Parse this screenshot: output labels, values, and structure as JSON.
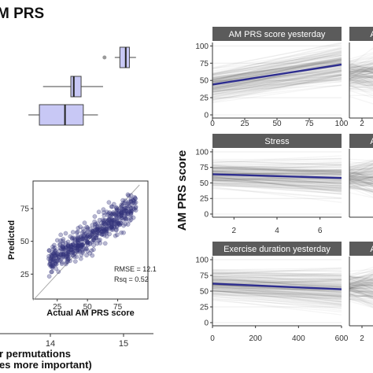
{
  "figure": {
    "title": "M PRS",
    "ylabel": "AM PRS score"
  },
  "chart_data": [
    {
      "type": "box",
      "boxes": [
        {
          "min": 14.88,
          "q1": 14.95,
          "median": 15.03,
          "q3": 15.08,
          "max": 15.17,
          "outliers": [
            14.74
          ]
        },
        {
          "min": 13.9,
          "q1": 14.28,
          "median": 14.32,
          "q3": 14.42,
          "max": 14.72,
          "outliers": []
        },
        {
          "min": 13.7,
          "q1": 13.85,
          "median": 14.2,
          "q3": 14.45,
          "max": 14.65,
          "outliers": []
        }
      ],
      "xticks": [
        14,
        15
      ],
      "xlabel_lines": [
        "r permutations",
        "es more important)"
      ],
      "fill_color": "#c8c8f5"
    },
    {
      "type": "scatter",
      "xlabel": "Actual AM PRS score",
      "ylabel": "Predicted",
      "xlim": [
        5,
        100
      ],
      "ylim": [
        6,
        96
      ],
      "xticks": [
        25,
        50,
        75
      ],
      "yticks": [
        25,
        50,
        75
      ],
      "identity_line": true,
      "annotations": [
        "RMSE = 12.1",
        "Rsq = 0.52"
      ],
      "point_color": "#33337a"
    },
    {
      "type": "line",
      "title": "AM PRS score yesterday",
      "xlim": [
        0,
        100
      ],
      "ylim": [
        0,
        105
      ],
      "xticks": [
        0,
        25,
        50,
        75,
        100
      ],
      "yticks": [
        0,
        25,
        50,
        75,
        100
      ],
      "mean_line": {
        "x": [
          0,
          100
        ],
        "y": [
          44,
          73
        ]
      },
      "line_color": "#2d2d8f"
    },
    {
      "type": "line",
      "title": "Stress",
      "xlim": [
        1,
        7
      ],
      "ylim": [
        0,
        105
      ],
      "xticks": [
        2,
        4,
        6
      ],
      "yticks": [
        0,
        25,
        50,
        75,
        100
      ],
      "mean_line": {
        "x": [
          1,
          7
        ],
        "y": [
          64,
          58
        ]
      },
      "line_color": "#2d2d8f"
    },
    {
      "type": "line",
      "title": "Exercise duration yesterday",
      "xlim": [
        0,
        600
      ],
      "ylim": [
        0,
        105
      ],
      "xticks": [
        0,
        200,
        400,
        600
      ],
      "yticks": [
        0,
        25,
        50,
        75,
        100
      ],
      "mean_line": {
        "x": [
          0,
          600
        ],
        "y": [
          62,
          53
        ]
      },
      "line_color": "#2d2d8f"
    },
    {
      "type": "line",
      "title": "A",
      "ylim": [
        0,
        105
      ],
      "xticks": [
        "2"
      ],
      "partial": true
    },
    {
      "type": "line",
      "title": "A",
      "ylim": [
        0,
        105
      ],
      "xticks": [],
      "partial": true
    },
    {
      "type": "line",
      "title": "A",
      "ylim": [
        0,
        105
      ],
      "xticks": [
        "2"
      ],
      "partial": true
    }
  ]
}
